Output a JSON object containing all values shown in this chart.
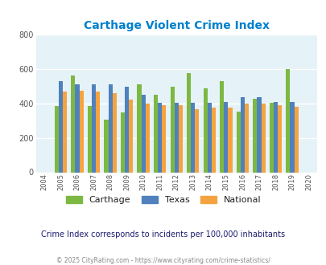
{
  "title": "Carthage Violent Crime Index",
  "years": [
    2004,
    2005,
    2006,
    2007,
    2008,
    2009,
    2010,
    2011,
    2012,
    2013,
    2014,
    2015,
    2016,
    2017,
    2018,
    2019,
    2020
  ],
  "carthage": [
    null,
    385,
    560,
    385,
    305,
    345,
    510,
    450,
    495,
    578,
    487,
    528,
    350,
    428,
    403,
    600,
    null
  ],
  "texas": [
    null,
    530,
    510,
    510,
    510,
    495,
    450,
    405,
    405,
    403,
    405,
    410,
    435,
    438,
    410,
    410,
    null
  ],
  "national": [
    null,
    468,
    472,
    468,
    458,
    420,
    400,
    387,
    387,
    368,
    375,
    373,
    397,
    397,
    390,
    380,
    null
  ],
  "carthage_color": "#7db843",
  "texas_color": "#4f81bd",
  "national_color": "#f4a340",
  "bg_color": "#e5f2f8",
  "ylim": [
    0,
    800
  ],
  "yticks": [
    0,
    200,
    400,
    600,
    800
  ],
  "bar_width": 0.25,
  "subtitle": "Crime Index corresponds to incidents per 100,000 inhabitants",
  "footer": "© 2025 CityRating.com - https://www.cityrating.com/crime-statistics/",
  "legend_labels": [
    "Carthage",
    "Texas",
    "National"
  ],
  "title_color": "#0080cc",
  "subtitle_color": "#1a1a6e",
  "footer_color": "#888888"
}
